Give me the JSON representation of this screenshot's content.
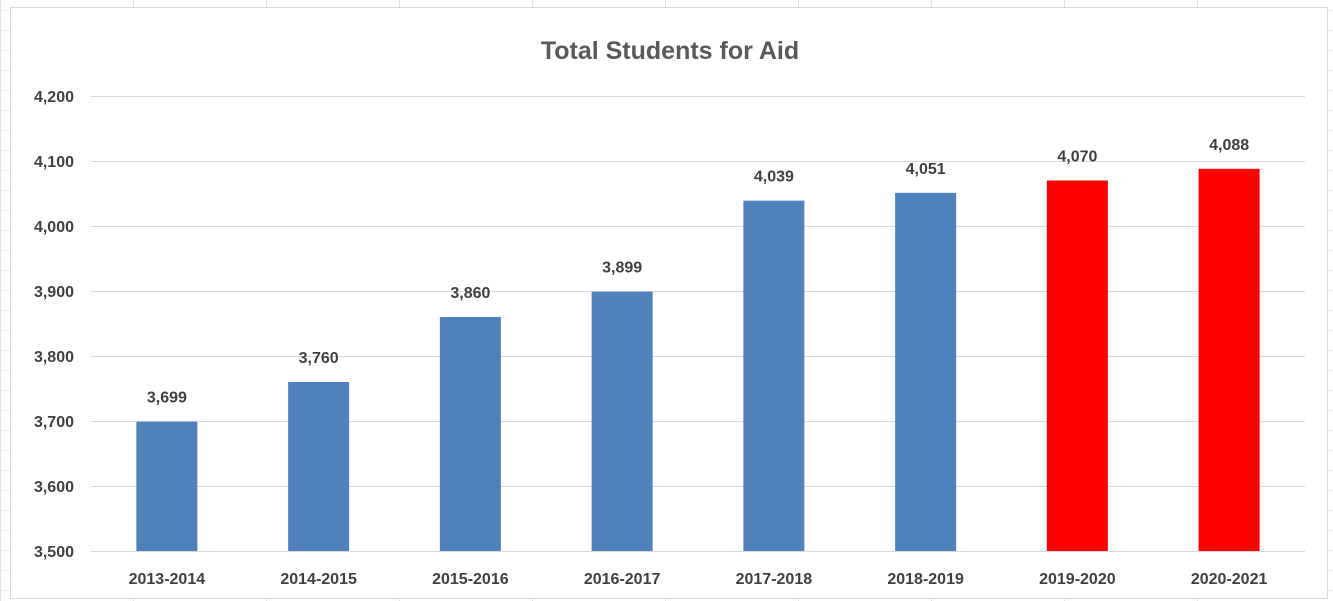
{
  "chart_data": {
    "type": "bar",
    "title": "Total Students for Aid",
    "xlabel": "",
    "ylabel": "",
    "categories": [
      "2013-2014",
      "2014-2015",
      "2015-2016",
      "2016-2017",
      "2017-2018",
      "2018-2019",
      "2019-2020",
      "2020-2021"
    ],
    "values": [
      3699,
      3760,
      3860,
      3899,
      4039,
      4051,
      4070,
      4088
    ],
    "data_labels": [
      "3,699",
      "3,760",
      "3,860",
      "3,899",
      "4,039",
      "4,051",
      "4,070",
      "4,088"
    ],
    "bar_colors": [
      "#4f81bd",
      "#4f81bd",
      "#4f81bd",
      "#4f81bd",
      "#4f81bd",
      "#4f81bd",
      "#ff0000",
      "#ff0000"
    ],
    "ylim": [
      3500,
      4200
    ],
    "yticks": [
      3500,
      3600,
      3700,
      3800,
      3900,
      4000,
      4100,
      4200
    ],
    "ytick_labels": [
      "3,500",
      "3,600",
      "3,700",
      "3,800",
      "3,900",
      "4,000",
      "4,100",
      "4,200"
    ],
    "grid": true,
    "legend": "none",
    "colors": {
      "gridline": "#d9d9d9",
      "text": "#404040",
      "title": "#595959",
      "leader_line": "#a6a6a6"
    }
  }
}
